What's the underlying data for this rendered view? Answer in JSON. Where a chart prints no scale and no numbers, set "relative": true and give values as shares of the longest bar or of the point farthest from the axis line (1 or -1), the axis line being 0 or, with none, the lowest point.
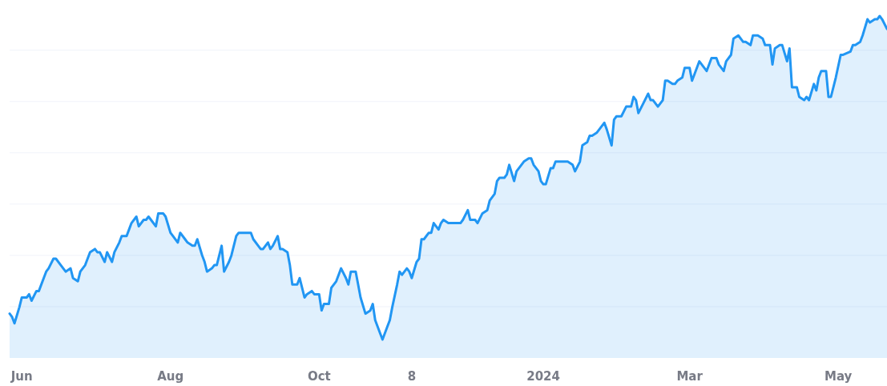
{
  "chart_data": {
    "type": "area",
    "relative": true,
    "grid": "y",
    "xlim": [
      "2023-05-27",
      "2024-05-21"
    ],
    "xticks": [
      {
        "value": "2023-06-01",
        "label": "Jun"
      },
      {
        "value": "2023-08-01",
        "label": "Aug"
      },
      {
        "value": "2023-10-01",
        "label": "Oct"
      },
      {
        "value": "2023-11-08",
        "label": "8"
      },
      {
        "value": "2024-01-01",
        "label": "2024"
      },
      {
        "value": "2024-03-01",
        "label": "Mar"
      },
      {
        "value": "2024-05-01",
        "label": "May"
      }
    ],
    "x": [
      "2023-05-27",
      "2023-05-28",
      "2023-05-29",
      "2023-05-31",
      "2023-06-01",
      "2023-06-03",
      "2023-06-04",
      "2023-06-05",
      "2023-06-07",
      "2023-06-08",
      "2023-06-10",
      "2023-06-11",
      "2023-06-12",
      "2023-06-14",
      "2023-06-15",
      "2023-06-17",
      "2023-06-19",
      "2023-06-21",
      "2023-06-22",
      "2023-06-24",
      "2023-06-25",
      "2023-06-27",
      "2023-06-29",
      "2023-07-01",
      "2023-07-02",
      "2023-07-03",
      "2023-07-05",
      "2023-07-06",
      "2023-07-08",
      "2023-07-09",
      "2023-07-11",
      "2023-07-12",
      "2023-07-14",
      "2023-07-15",
      "2023-07-16",
      "2023-07-18",
      "2023-07-19",
      "2023-07-21",
      "2023-07-22",
      "2023-07-23",
      "2023-07-24",
      "2023-07-26",
      "2023-07-27",
      "2023-07-29",
      "2023-07-30",
      "2023-08-01",
      "2023-08-02",
      "2023-08-04",
      "2023-08-05",
      "2023-08-07",
      "2023-08-08",
      "2023-08-10",
      "2023-08-11",
      "2023-08-12",
      "2023-08-14",
      "2023-08-15",
      "2023-08-16",
      "2023-08-18",
      "2023-08-19",
      "2023-08-20",
      "2023-08-22",
      "2023-08-23",
      "2023-08-25",
      "2023-08-26",
      "2023-08-28",
      "2023-08-29",
      "2023-08-31",
      "2023-09-02",
      "2023-09-03",
      "2023-09-04",
      "2023-09-06",
      "2023-09-07",
      "2023-09-08",
      "2023-09-10",
      "2023-09-11",
      "2023-09-12",
      "2023-09-14",
      "2023-09-15",
      "2023-09-16",
      "2023-09-18",
      "2023-09-19",
      "2023-09-20",
      "2023-09-22",
      "2023-09-23",
      "2023-09-25",
      "2023-09-26",
      "2023-09-28",
      "2023-09-29",
      "2023-10-01",
      "2023-10-02",
      "2023-10-03",
      "2023-10-05",
      "2023-10-06",
      "2023-10-08",
      "2023-10-09",
      "2023-10-10",
      "2023-10-12",
      "2023-10-13",
      "2023-10-14",
      "2023-10-16",
      "2023-10-17",
      "2023-10-18",
      "2023-10-20",
      "2023-10-22",
      "2023-10-23",
      "2023-10-24",
      "2023-10-26",
      "2023-10-27",
      "2023-10-29",
      "2023-10-30",
      "2023-10-31",
      "2023-11-02",
      "2023-11-03",
      "2023-11-04",
      "2023-11-06",
      "2023-11-07",
      "2023-11-08",
      "2023-11-10",
      "2023-11-11",
      "2023-11-12",
      "2023-11-13",
      "2023-11-15",
      "2023-11-16",
      "2023-11-17",
      "2023-11-19",
      "2023-11-20",
      "2023-11-21",
      "2023-11-23",
      "2023-11-24",
      "2023-11-26",
      "2023-11-28",
      "2023-11-29",
      "2023-12-01",
      "2023-12-02",
      "2023-12-04",
      "2023-12-05",
      "2023-12-07",
      "2023-12-09",
      "2023-12-10",
      "2023-12-12",
      "2023-12-13",
      "2023-12-14",
      "2023-12-16",
      "2023-12-17",
      "2023-12-18",
      "2023-12-20",
      "2023-12-21",
      "2023-12-22",
      "2023-12-24",
      "2023-12-26",
      "2023-12-27",
      "2023-12-28",
      "2023-12-30",
      "2023-12-31",
      "2024-01-01",
      "2024-01-02",
      "2024-01-04",
      "2024-01-05",
      "2024-01-06",
      "2024-01-08",
      "2024-01-10",
      "2024-01-11",
      "2024-01-13",
      "2024-01-14",
      "2024-01-16",
      "2024-01-17",
      "2024-01-19",
      "2024-01-20",
      "2024-01-21",
      "2024-01-23",
      "2024-01-24",
      "2024-01-26",
      "2024-01-27",
      "2024-01-29",
      "2024-01-30",
      "2024-01-31",
      "2024-02-02",
      "2024-02-04",
      "2024-02-06",
      "2024-02-07",
      "2024-02-08",
      "2024-02-09",
      "2024-02-11",
      "2024-02-13",
      "2024-02-14",
      "2024-02-15",
      "2024-02-17",
      "2024-02-19",
      "2024-02-20",
      "2024-02-21",
      "2024-02-23",
      "2024-02-24",
      "2024-02-25",
      "2024-02-27",
      "2024-02-28",
      "2024-03-01",
      "2024-03-02",
      "2024-03-03",
      "2024-03-05",
      "2024-03-07",
      "2024-03-08",
      "2024-03-10",
      "2024-03-12",
      "2024-03-13",
      "2024-03-15",
      "2024-03-16",
      "2024-03-18",
      "2024-03-19",
      "2024-03-21",
      "2024-03-23",
      "2024-03-24",
      "2024-03-26",
      "2024-03-27",
      "2024-03-29",
      "2024-03-31",
      "2024-04-01",
      "2024-04-03",
      "2024-04-04",
      "2024-04-05",
      "2024-04-07",
      "2024-04-08",
      "2024-04-10",
      "2024-04-11",
      "2024-04-12",
      "2024-04-14",
      "2024-04-15",
      "2024-04-17",
      "2024-04-18",
      "2024-04-19",
      "2024-04-21",
      "2024-04-22",
      "2024-04-23",
      "2024-04-24",
      "2024-04-26",
      "2024-04-27",
      "2024-04-28",
      "2024-04-30",
      "2024-05-02",
      "2024-05-03",
      "2024-05-06",
      "2024-05-07",
      "2024-05-08",
      "2024-05-10",
      "2024-05-11",
      "2024-05-13",
      "2024-05-14",
      "2024-05-16",
      "2024-05-17",
      "2024-05-18",
      "2024-05-19",
      "2024-05-21"
    ],
    "series": [
      {
        "color": "#2196f3",
        "values": [
          0.08,
          0.07,
          0.05,
          0.1,
          0.13,
          0.13,
          0.14,
          0.12,
          0.15,
          0.15,
          0.19,
          0.21,
          0.22,
          0.25,
          0.25,
          0.23,
          0.21,
          0.22,
          0.19,
          0.18,
          0.21,
          0.23,
          0.27,
          0.28,
          0.27,
          0.27,
          0.24,
          0.27,
          0.24,
          0.27,
          0.3,
          0.32,
          0.32,
          0.34,
          0.36,
          0.38,
          0.35,
          0.37,
          0.37,
          0.38,
          0.37,
          0.35,
          0.39,
          0.39,
          0.38,
          0.33,
          0.32,
          0.3,
          0.33,
          0.31,
          0.3,
          0.29,
          0.29,
          0.31,
          0.26,
          0.24,
          0.21,
          0.22,
          0.23,
          0.23,
          0.29,
          0.21,
          0.24,
          0.26,
          0.32,
          0.33,
          0.33,
          0.33,
          0.33,
          0.31,
          0.29,
          0.28,
          0.28,
          0.3,
          0.28,
          0.29,
          0.32,
          0.28,
          0.28,
          0.27,
          0.23,
          0.17,
          0.17,
          0.19,
          0.13,
          0.14,
          0.15,
          0.14,
          0.14,
          0.09,
          0.11,
          0.11,
          0.16,
          0.18,
          0.2,
          0.22,
          0.19,
          0.17,
          0.21,
          0.21,
          0.17,
          0.13,
          0.08,
          0.09,
          0.11,
          0.06,
          0.02,
          0,
          0.04,
          0.06,
          0.1,
          0.17,
          0.21,
          0.2,
          0.22,
          0.21,
          0.19,
          0.24,
          0.25,
          0.31,
          0.31,
          0.33,
          0.33,
          0.36,
          0.34,
          0.36,
          0.37,
          0.36,
          0.36,
          0.36,
          0.36,
          0.37,
          0.4,
          0.37,
          0.37,
          0.36,
          0.39,
          0.4,
          0.43,
          0.45,
          0.49,
          0.5,
          0.5,
          0.51,
          0.54,
          0.49,
          0.52,
          0.53,
          0.55,
          0.56,
          0.56,
          0.54,
          0.52,
          0.49,
          0.48,
          0.48,
          0.53,
          0.53,
          0.55,
          0.55,
          0.55,
          0.55,
          0.54,
          0.52,
          0.55,
          0.6,
          0.61,
          0.63,
          0.63,
          0.64,
          0.65,
          0.67,
          0.65,
          0.6,
          0.68,
          0.69,
          0.69,
          0.72,
          0.72,
          0.75,
          0.74,
          0.7,
          0.73,
          0.76,
          0.74,
          0.74,
          0.72,
          0.74,
          0.8,
          0.8,
          0.79,
          0.79,
          0.8,
          0.81,
          0.84,
          0.84,
          0.8,
          0.82,
          0.86,
          0.84,
          0.83,
          0.87,
          0.87,
          0.85,
          0.83,
          0.86,
          0.88,
          0.93,
          0.94,
          0.92,
          0.92,
          0.91,
          0.94,
          0.94,
          0.93,
          0.91,
          0.91,
          0.85,
          0.9,
          0.91,
          0.91,
          0.86,
          0.9,
          0.78,
          0.78,
          0.75,
          0.74,
          0.75,
          0.74,
          0.79,
          0.77,
          0.81,
          0.83,
          0.83,
          0.75,
          0.75,
          0.81,
          0.88,
          0.88,
          0.89,
          0.91,
          0.91,
          0.92,
          0.94,
          0.99,
          0.98,
          0.99,
          0.99,
          1,
          0.99,
          0.96
        ]
      }
    ]
  }
}
